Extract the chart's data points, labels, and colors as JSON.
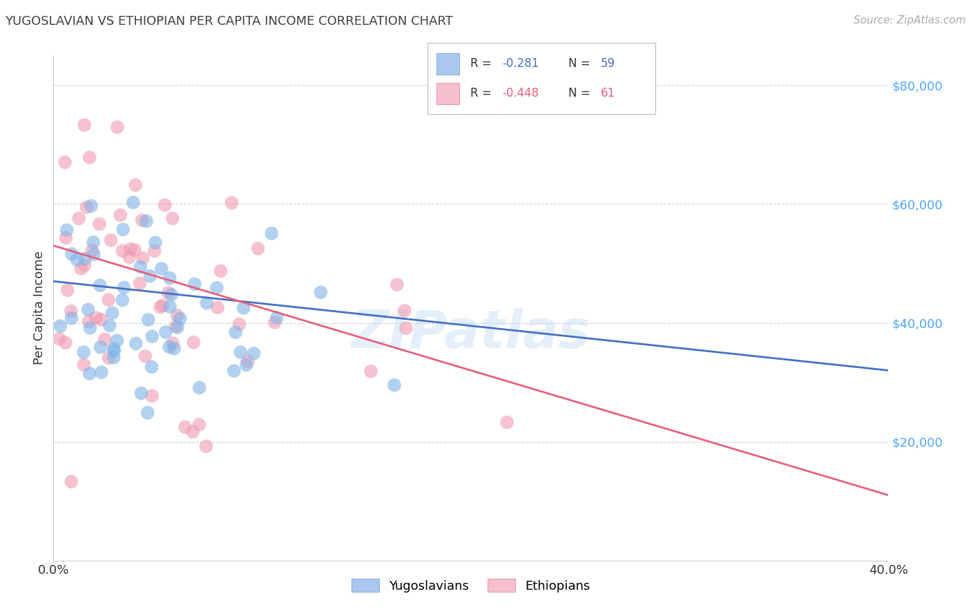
{
  "title": "YUGOSLAVIAN VS ETHIOPIAN PER CAPITA INCOME CORRELATION CHART",
  "source": "Source: ZipAtlas.com",
  "ylabel": "Per Capita Income",
  "yticks": [
    20000,
    40000,
    60000,
    80000
  ],
  "ytick_labels": [
    "$20,000",
    "$40,000",
    "$60,000",
    "$80,000"
  ],
  "yugo_color": "#7fb3e8",
  "ethio_color": "#f09ab0",
  "yugo_line_color": "#4472c4",
  "ethio_line_color": "#e8607a",
  "background_color": "#ffffff",
  "grid_color": "#cccccc",
  "title_color": "#404040",
  "source_color": "#aaaaaa",
  "yaxis_color": "#4da6ff",
  "xmin": 0.0,
  "xmax": 0.4,
  "ymin": 0,
  "ymax": 85000,
  "R_yugo": -0.281,
  "N_yugo": 59,
  "R_ethio": -0.448,
  "N_ethio": 61,
  "yugo_line_y0": 47000,
  "yugo_line_y1": 32000,
  "ethio_line_y0": 53000,
  "ethio_line_y1": 11000,
  "watermark": "ZIPatlas",
  "seed": 42
}
